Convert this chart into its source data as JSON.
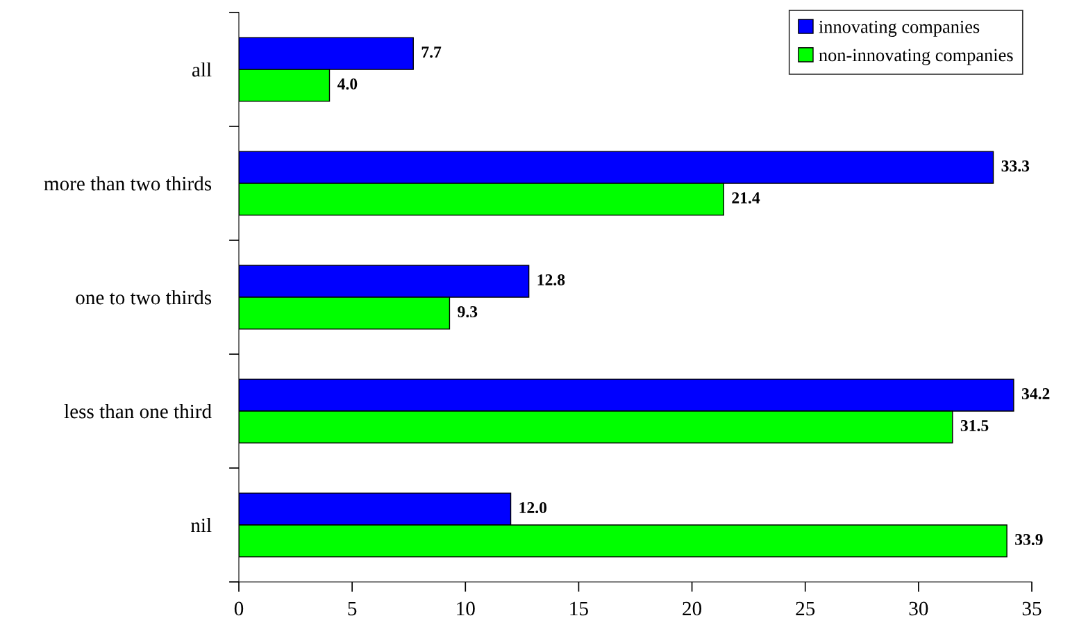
{
  "chart_data": {
    "type": "bar",
    "orientation": "horizontal",
    "categories": [
      "all",
      "more than two thirds",
      "one to two thirds",
      "less than one third",
      "nil"
    ],
    "series": [
      {
        "name": "innovating companies",
        "color": "#0000ff",
        "values": [
          7.7,
          33.3,
          12.8,
          34.2,
          12.0
        ]
      },
      {
        "name": "non-innovating companies",
        "color": "#00ff00",
        "values": [
          4.0,
          21.4,
          9.3,
          31.5,
          33.9
        ]
      }
    ],
    "xlim": [
      0,
      35
    ],
    "xticks": [
      0,
      5,
      10,
      15,
      20,
      25,
      30,
      35
    ],
    "value_labels": [
      [
        "7.7",
        "33.3",
        "12.8",
        "34.2",
        "12.0"
      ],
      [
        "4.0",
        "21.4",
        "9.3",
        "31.5",
        "33.9"
      ]
    ],
    "grid": false,
    "legend": "top right"
  }
}
